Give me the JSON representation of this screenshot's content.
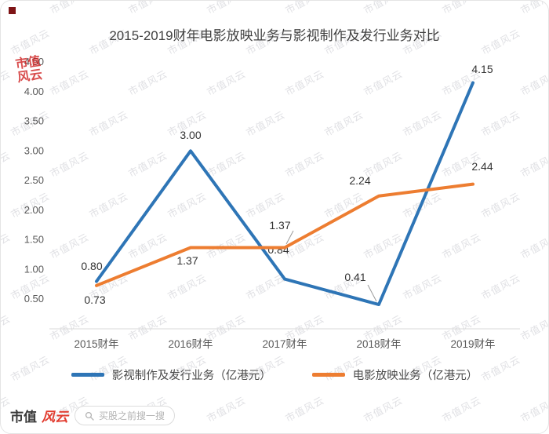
{
  "watermark": {
    "text": "市值风云"
  },
  "logo": {
    "seal_top": "市值",
    "seal_bottom": "风云"
  },
  "footer": {
    "brand_dark": "市值",
    "brand_red": "风云",
    "search_icon": "magnifier",
    "search_placeholder": "买股之前搜一搜"
  },
  "chart_data": {
    "type": "line",
    "title": "2015-2019财年电影放映业务与影视制作及发行业务对比",
    "categories": [
      "2015财年",
      "2016财年",
      "2017财年",
      "2018财年",
      "2019财年"
    ],
    "series": [
      {
        "name": "影视制作及发行业务（亿港元）",
        "color": "#2E75B6",
        "values": [
          0.8,
          3.0,
          0.84,
          0.41,
          4.15
        ]
      },
      {
        "name": "电影放映业务（亿港元）",
        "color": "#ED7D31",
        "values": [
          0.73,
          1.37,
          1.37,
          2.24,
          2.44
        ]
      }
    ],
    "y_ticks": [
      "4.50",
      "4.00",
      "3.50",
      "3.00",
      "2.50",
      "2.00",
      "1.50",
      "1.00",
      "0.50"
    ],
    "ylim": [
      0,
      4.5
    ],
    "grid": false,
    "data_labels": true,
    "legend_position": "bottom"
  }
}
